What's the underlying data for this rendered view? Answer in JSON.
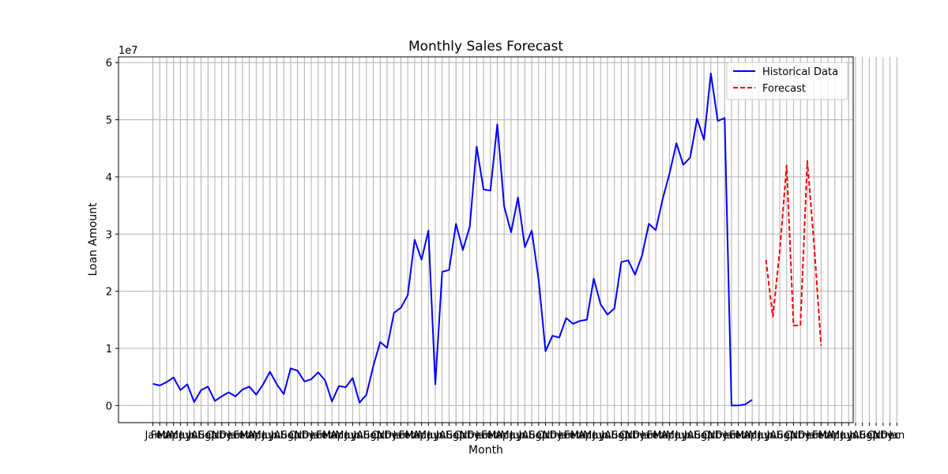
{
  "chart_data": {
    "type": "line",
    "title": "Monthly Sales Forecast",
    "xlabel": "Month",
    "ylabel": "Loan Amount",
    "y_multiplier_label": "1e7",
    "ylim": [
      -3000000,
      61000000
    ],
    "yticks": [
      0,
      10000000,
      20000000,
      30000000,
      40000000,
      50000000,
      60000000
    ],
    "ytick_labels": [
      "0",
      "1",
      "2",
      "3",
      "4",
      "5",
      "6"
    ],
    "grid": true,
    "legend_position": "top-right",
    "x_tick_labels": [
      "Jan",
      "Feb",
      "Mar",
      "Apr",
      "May",
      "Jun",
      "Jul",
      "Aug",
      "Sep",
      "Oct",
      "Nov",
      "Dec",
      "Jan",
      "Feb",
      "Mar",
      "Apr",
      "May",
      "Jun",
      "Jul",
      "Aug",
      "Sep",
      "Oct",
      "Nov",
      "Dec",
      "Jan",
      "Feb",
      "Mar",
      "Apr",
      "May",
      "Jun",
      "Jul",
      "Aug",
      "Sep",
      "Oct",
      "Nov",
      "Dec",
      "Jan",
      "Feb",
      "Mar",
      "Apr",
      "May",
      "Jun",
      "Jul",
      "Aug",
      "Sep",
      "Oct",
      "Nov",
      "Dec",
      "Jan",
      "Feb",
      "Mar",
      "Apr",
      "May",
      "Jun",
      "Jul",
      "Aug",
      "Sep",
      "Oct",
      "Nov",
      "Dec",
      "Jan",
      "Feb",
      "Mar",
      "Apr",
      "May",
      "Jun",
      "Jul",
      "Aug",
      "Sep",
      "Oct",
      "Nov",
      "Dec",
      "Jan",
      "Feb",
      "Mar",
      "Apr",
      "May",
      "Jun",
      "Jul",
      "Aug",
      "Sep",
      "Oct",
      "Nov",
      "Dec",
      "Jan",
      "Feb",
      "Mar",
      "Apr",
      "May",
      "Jun",
      "Jul",
      "Aug",
      "Sep",
      "Oct",
      "Nov",
      "Dec",
      "Jan",
      "Feb",
      "Mar",
      "Apr",
      "May",
      "Jun",
      "Jul",
      "Aug",
      "Sep",
      "Oct",
      "Nov",
      "Dec",
      "Jan"
    ],
    "series": [
      {
        "name": "Historical Data",
        "color": "#0000ff",
        "style": "solid",
        "start_index": 0,
        "values": [
          3800000,
          3500000,
          4100000,
          4900000,
          2700000,
          3700000,
          600000,
          2700000,
          3300000,
          800000,
          1600000,
          2300000,
          1600000,
          2800000,
          3300000,
          1900000,
          3700000,
          5900000,
          3700000,
          2000000,
          6500000,
          6100000,
          4200000,
          4600000,
          5800000,
          4400000,
          700000,
          3400000,
          3200000,
          4800000,
          500000,
          1900000,
          6900000,
          11100000,
          10100000,
          16200000,
          17100000,
          19300000,
          29000000,
          25500000,
          30600000,
          3700000,
          23400000,
          23700000,
          31800000,
          27200000,
          31300000,
          45300000,
          37800000,
          37600000,
          49200000,
          34800000,
          30300000,
          36400000,
          27700000,
          30600000,
          22000000,
          9500000,
          12200000,
          11900000,
          15300000,
          14300000,
          14800000,
          15000000,
          22200000,
          17700000,
          15900000,
          17000000,
          25100000,
          25400000,
          22900000,
          26200000,
          31800000,
          30700000,
          36100000,
          40600000,
          45900000,
          42100000,
          43400000,
          50200000,
          46500000,
          58100000,
          49800000,
          50300000,
          0,
          0,
          200000,
          1000000
        ]
      },
      {
        "name": "Forecast",
        "color": "#ff0000",
        "style": "dashed",
        "start_index": 89,
        "values": [
          25500000,
          15500000,
          27000000,
          42000000,
          14000000,
          14000000,
          42800000,
          28000000,
          10500000
        ]
      }
    ]
  }
}
